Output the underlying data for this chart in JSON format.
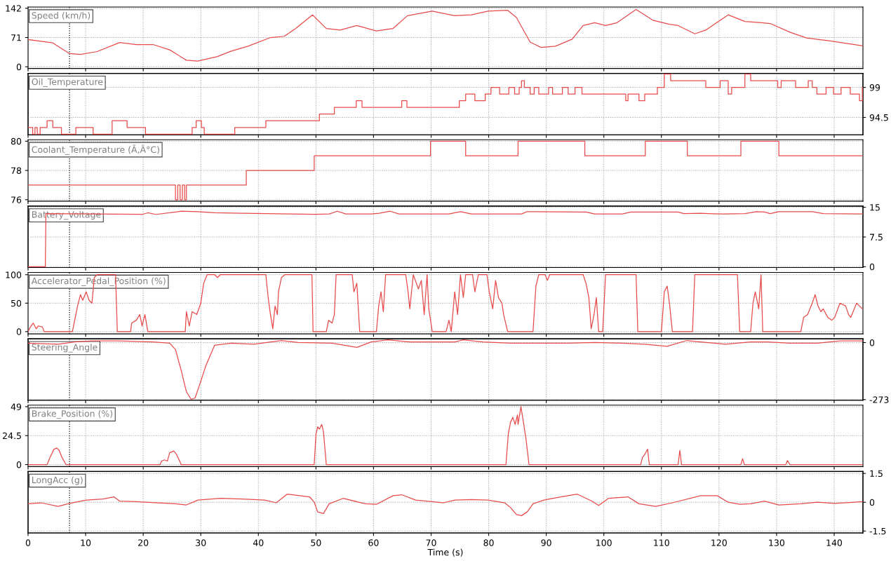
{
  "chart_data": [
    {
      "type": "line",
      "title": "Speed (km/h)",
      "xlim": [
        0,
        145
      ],
      "xticks": [
        0,
        10,
        20,
        30,
        40,
        50,
        60,
        70,
        80,
        90,
        100,
        110,
        120,
        130,
        140
      ],
      "ylim": [
        -4,
        145
      ],
      "yticks": [
        0,
        71,
        142
      ],
      "grid": true,
      "tick_labels": "y",
      "ref_lines": [
        {
          "axis": "x",
          "value": 7.2,
          "color": "#000000",
          "line_style": "dotted"
        }
      ],
      "series": [
        {
          "color": "#e84a4a",
          "x": [
            0,
            4.3,
            7.2,
            9.1,
            12,
            15.9,
            18.8,
            21.7,
            24.6,
            27.5,
            29.5,
            32.9,
            35.3,
            38.2,
            42.1,
            44.5,
            46.5,
            49.4,
            51.8,
            54.2,
            57.1,
            60.5,
            63.4,
            65.9,
            70.2,
            74.1,
            77,
            79.9,
            83.3,
            84.8,
            87.2,
            89.1,
            91.6,
            94.5,
            96.4,
            98.4,
            100.3,
            102.3,
            105.6,
            108.5,
            111.4,
            112.9,
            115.8,
            117.7,
            121.6,
            124.5,
            127.4,
            128.9,
            132.3,
            135.2,
            139.1,
            144.9
          ],
          "values": [
            66,
            58,
            32,
            30,
            37,
            59,
            54,
            54,
            41,
            16,
            14,
            25,
            38,
            50,
            71,
            74,
            93,
            126,
            93,
            89,
            100,
            87,
            93,
            124,
            135,
            124,
            126,
            135,
            137,
            120,
            60,
            47,
            50,
            67,
            100,
            107,
            100,
            107,
            139,
            113,
            103,
            100,
            80,
            89,
            126,
            110,
            107,
            105,
            84,
            70,
            63,
            51
          ]
        }
      ]
    },
    {
      "type": "step",
      "title": "Oil_Temperature",
      "xlim": [
        0,
        145
      ],
      "xticks": [
        0,
        10,
        20,
        30,
        40,
        50,
        60,
        70,
        80,
        90,
        100,
        110,
        120,
        130,
        140
      ],
      "y2lim": [
        91.9,
        101.1
      ],
      "y2ticks": [
        94.5,
        99
      ],
      "grid": true,
      "tick_labels": "y",
      "ref_lines": [
        {
          "axis": "x",
          "value": 7.2,
          "color": "#000000",
          "line_style": "dotted"
        }
      ],
      "series": [
        {
          "color": "#e84a4a",
          "axis": "y2",
          "x": [
            0,
            0.8,
            1.2,
            1.6,
            2.1,
            3.3,
            4.3,
            5.8,
            8.3,
            11.3,
            14.6,
            17.2,
            20.4,
            28.5,
            29.2,
            30.1,
            30.6,
            35.9,
            41.3,
            50.6,
            53.2,
            57,
            58,
            64.9,
            65.8,
            74.9,
            76,
            77.6,
            79.4,
            80.4,
            81.9,
            83.5,
            84.5,
            85.3,
            85.7,
            86.2,
            87.2,
            87.9,
            88.7,
            90.4,
            91.1,
            92.8,
            93.8,
            95,
            96.2,
            103.8,
            104.2,
            106.1,
            107.1,
            109.3,
            110.5,
            111.6,
            117.7,
            120.2,
            121.6,
            122.2,
            124.5,
            125.5,
            130.2,
            130.8,
            133.3,
            135.5,
            136.2,
            137,
            138.6,
            139.9,
            141.2,
            142.8,
            144.4,
            144.9
          ],
          "values": [
            93,
            92,
            93,
            92,
            93,
            94,
            93,
            92,
            93,
            92,
            94,
            93,
            92,
            93,
            94,
            93,
            92,
            93,
            94,
            95,
            96,
            97,
            96,
            97,
            96,
            97,
            98,
            97,
            98,
            99,
            98,
            99,
            98,
            99,
            100,
            99,
            98,
            99,
            98,
            99,
            98,
            99,
            98,
            99,
            98,
            97,
            98,
            97,
            98,
            99,
            101,
            100,
            99,
            100,
            98,
            99,
            101,
            100,
            99,
            100,
            99,
            100,
            99,
            98,
            99,
            98,
            99,
            98,
            97,
            99
          ]
        }
      ]
    },
    {
      "type": "step",
      "title": "Coolant_Temperature (Ã,Â°C)",
      "xlim": [
        0,
        145
      ],
      "xticks": [
        0,
        10,
        20,
        30,
        40,
        50,
        60,
        70,
        80,
        90,
        100,
        110,
        120,
        130,
        140
      ],
      "ylim": [
        75.9,
        80.1
      ],
      "yticks": [
        76,
        78,
        80
      ],
      "grid": true,
      "tick_labels": "y",
      "ref_lines": [
        {
          "axis": "x",
          "value": 7.2,
          "color": "#000000",
          "line_style": "dotted"
        }
      ],
      "series": [
        {
          "color": "#e84a4a",
          "x": [
            0,
            25.6,
            26,
            26.4,
            26.8,
            27.2,
            27.5,
            37.9,
            49.7,
            69.9,
            76,
            85.1,
            96.7,
            107.2,
            114.5,
            123.8,
            130.4,
            144.9
          ],
          "values": [
            77,
            76,
            77,
            76,
            77,
            76,
            77,
            78,
            79,
            80,
            79,
            80,
            79,
            80,
            79,
            80,
            79,
            79
          ]
        }
      ]
    },
    {
      "type": "line",
      "title": "Battery_Voltage",
      "xlim": [
        0,
        145
      ],
      "xticks": [
        0,
        10,
        20,
        30,
        40,
        50,
        60,
        70,
        80,
        90,
        100,
        110,
        120,
        130,
        140
      ],
      "y2lim": [
        -0.2,
        15.3
      ],
      "y2ticks": [
        0,
        7.5,
        15
      ],
      "grid": true,
      "tick_labels": "y",
      "ref_lines": [
        {
          "axis": "x",
          "value": 7.2,
          "color": "#000000",
          "line_style": "dotted"
        }
      ],
      "series": [
        {
          "color": "#e84a4a",
          "axis": "y2",
          "x": [
            0,
            3,
            3.1,
            19.8,
            20.8,
            22.2,
            24.6,
            26.6,
            29.5,
            32.4,
            37.2,
            49.9,
            52.3,
            53.7,
            55.2,
            59.6,
            61,
            62.9,
            64.4,
            73.1,
            75.1,
            77,
            85.7,
            86.7,
            96.9,
            98.4,
            103.2,
            104.7,
            112.9,
            113.9,
            116.8,
            118.2,
            120.7,
            124.5,
            126.5,
            127.9,
            128.9,
            130.4,
            136.2,
            138.1,
            144.9
          ],
          "values": [
            0,
            0,
            13.4,
            13.2,
            13.6,
            13.2,
            13.6,
            14,
            13.9,
            13.6,
            13.5,
            13.2,
            13.3,
            14,
            13.3,
            13.3,
            13.5,
            14,
            13.3,
            13.3,
            13.9,
            13.3,
            13.3,
            13.9,
            13.8,
            13.3,
            13.3,
            13.8,
            13.8,
            13.4,
            13.5,
            13.4,
            13.3,
            13.4,
            13.9,
            13.8,
            13.4,
            13.9,
            13.9,
            13.4,
            13.3
          ]
        }
      ]
    },
    {
      "type": "line",
      "title": "Accelerator_Pedal_Position (%)",
      "xlim": [
        0,
        145
      ],
      "xticks": [
        0,
        10,
        20,
        30,
        40,
        50,
        60,
        70,
        80,
        90,
        100,
        110,
        120,
        130,
        140
      ],
      "ylim": [
        -4,
        104
      ],
      "yticks": [
        0,
        50,
        100
      ],
      "grid": true,
      "tick_labels": "y",
      "ref_lines": [
        {
          "axis": "x",
          "value": 7.2,
          "color": "#000000",
          "line_style": "dotted"
        }
      ],
      "series": [
        {
          "color": "#e84a4a",
          "x": [
            0,
            0.4,
            0.9,
            1.4,
            1.8,
            2.5,
            2.8,
            7.7,
            8,
            8.6,
            9.1,
            9.5,
            10.1,
            10.6,
            11.1,
            11.5,
            12,
            15.2,
            15.5,
            17.8,
            18,
            18.8,
            19.4,
            19.8,
            20.3,
            20.8,
            27.3,
            27.5,
            28,
            28.5,
            29.3,
            30,
            30.5,
            31.1,
            32.4,
            32.9,
            33.4,
            41.3,
            41.7,
            42.1,
            42.5,
            42.9,
            43.3,
            43.5,
            44,
            44.6,
            49.3,
            49.5,
            51.8,
            52.2,
            52.8,
            53.2,
            53.5,
            56.3,
            56.6,
            57.1,
            57.6,
            60.5,
            60.9,
            61.3,
            61.7,
            62.1,
            65.6,
            66,
            66.3,
            66.9,
            67.8,
            68.3,
            68.8,
            69.3,
            69.6,
            70.2,
            72.6,
            73.1,
            73.5,
            74.1,
            74.6,
            75.1,
            75.6,
            76,
            77.2,
            77.6,
            78.2,
            79.7,
            80.1,
            80.7,
            81.2,
            81.7,
            82.3,
            82.6,
            83.3,
            87.7,
            88.2,
            88.7,
            89.8,
            90.2,
            90.6,
            96.4,
            96.9,
            97.4,
            97.8,
            98.3,
            98.7,
            99.1,
            99.8,
            100.3,
            105.6,
            105.9,
            110,
            110.5,
            111,
            111.4,
            111.9,
            115.4,
            115.8,
            123.2,
            123.6,
            125.5,
            125.9,
            126.3,
            126.9,
            127.3,
            127.6,
            134.2,
            134.7,
            135.4,
            136.2,
            136.7,
            137.2,
            137.7,
            138.1,
            138.9,
            139.6,
            140.1,
            141,
            142,
            142.5,
            142.9,
            143.9,
            144.4,
            144.9
          ],
          "values": [
            0,
            8,
            15,
            5,
            10,
            8,
            0,
            0,
            15,
            45,
            65,
            55,
            70,
            55,
            50,
            95,
            100,
            100,
            0,
            0,
            15,
            20,
            30,
            10,
            30,
            0,
            0,
            35,
            10,
            35,
            30,
            50,
            85,
            100,
            100,
            95,
            100,
            100,
            60,
            30,
            5,
            45,
            30,
            70,
            95,
            100,
            100,
            0,
            0,
            20,
            15,
            30,
            100,
            100,
            70,
            85,
            0,
            0,
            45,
            70,
            35,
            100,
            100,
            70,
            40,
            100,
            75,
            90,
            30,
            100,
            40,
            0,
            0,
            20,
            0,
            70,
            30,
            100,
            60,
            100,
            100,
            70,
            100,
            100,
            70,
            40,
            90,
            60,
            50,
            30,
            0,
            0,
            80,
            100,
            100,
            90,
            100,
            100,
            85,
            60,
            5,
            30,
            60,
            0,
            0,
            100,
            100,
            0,
            0,
            70,
            80,
            50,
            0,
            0,
            100,
            100,
            0,
            0,
            50,
            70,
            40,
            100,
            0,
            0,
            25,
            30,
            50,
            65,
            45,
            35,
            40,
            25,
            20,
            25,
            50,
            45,
            30,
            25,
            50,
            45,
            40
          ]
        }
      ]
    },
    {
      "type": "line",
      "title": "Steering_Angle",
      "xlim": [
        0,
        145
      ],
      "xticks": [
        0,
        10,
        20,
        30,
        40,
        50,
        60,
        70,
        80,
        90,
        100,
        110,
        120,
        130,
        140
      ],
      "y2lim": [
        -276,
        18
      ],
      "y2ticks": [
        -273,
        0
      ],
      "grid": true,
      "tick_labels": "y",
      "ref_lines": [
        {
          "axis": "x",
          "value": 7.2,
          "color": "#000000",
          "line_style": "dotted"
        }
      ],
      "series": [
        {
          "color": "#e84a4a",
          "axis": "y2",
          "x": [
            0,
            5.2,
            8.1,
            11.1,
            15.9,
            21.7,
            24.6,
            25.6,
            26.6,
            27.5,
            28.3,
            29,
            30,
            30.9,
            32.4,
            35.3,
            39.2,
            44,
            46.9,
            52.8,
            57.1,
            59.6,
            62.5,
            66.3,
            74.1,
            75.6,
            79,
            83.8,
            88.7,
            93.5,
            98.4,
            103.2,
            107.1,
            111,
            114.4,
            116.8,
            121.1,
            125.5,
            128.4,
            132.3,
            137.1,
            141,
            144.9
          ],
          "values": [
            -3,
            -8,
            3,
            8,
            8,
            3,
            -3,
            -33,
            -134,
            -235,
            -271,
            -266,
            -185,
            -109,
            -13,
            -3,
            -8,
            10,
            0,
            -3,
            -23,
            3,
            13,
            3,
            3,
            13,
            3,
            -3,
            -3,
            -3,
            0,
            -3,
            -8,
            -18,
            10,
            3,
            -8,
            3,
            3,
            -3,
            -3,
            8,
            8
          ]
        }
      ]
    },
    {
      "type": "line",
      "title": "Brake_Position (%)",
      "xlim": [
        0,
        145
      ],
      "xticks": [
        0,
        10,
        20,
        30,
        40,
        50,
        60,
        70,
        80,
        90,
        100,
        110,
        120,
        130,
        140
      ],
      "ylim": [
        -1.7,
        50.3
      ],
      "yticks": [
        0,
        24.5,
        49
      ],
      "grid": true,
      "tick_labels": "y",
      "ref_lines": [
        {
          "axis": "x",
          "value": 7.2,
          "color": "#000000",
          "line_style": "dotted"
        }
      ],
      "series": [
        {
          "color": "#e84a4a",
          "x": [
            0,
            3.3,
            3.8,
            4.5,
            5,
            5.4,
            5.9,
            6.6,
            22.9,
            23.2,
            23.7,
            24.2,
            24.6,
            25.3,
            25.8,
            26.6,
            49.7,
            50,
            50.3,
            50.6,
            51,
            51.3,
            51.8,
            83,
            83.4,
            83.8,
            84.2,
            84.6,
            85,
            85.1,
            85.4,
            85.6,
            85.9,
            86.5,
            87,
            106.4,
            106.7,
            107.1,
            107.6,
            107.9,
            112.9,
            113.2,
            113.5,
            123.8,
            124.1,
            124.4,
            131.6,
            131.9,
            132.3,
            144.9
          ],
          "values": [
            0,
            0,
            6,
            13,
            14,
            12,
            6,
            0,
            0,
            3,
            4,
            3,
            10,
            11.5,
            8.5,
            0,
            0,
            25.6,
            32,
            30,
            34,
            28,
            0,
            0,
            25.6,
            36,
            40,
            34,
            42,
            34,
            43,
            49,
            40,
            21,
            0,
            0,
            6,
            8.5,
            13,
            0,
            0,
            12,
            0,
            0,
            5,
            0,
            0,
            3.4,
            0,
            0
          ]
        }
      ]
    },
    {
      "type": "line",
      "title": "LongAcc (g)",
      "xlabel": "Time (s)",
      "xlim": [
        0,
        145
      ],
      "xticks": [
        0,
        10,
        20,
        30,
        40,
        50,
        60,
        70,
        80,
        90,
        100,
        110,
        120,
        130,
        140
      ],
      "y2lim": [
        -1.6,
        1.6
      ],
      "y2ticks": [
        -1.5,
        0,
        1.5
      ],
      "grid": true,
      "ref_lines": [
        {
          "axis": "x",
          "value": 7.2,
          "color": "#000000",
          "line_style": "dotted"
        }
      ],
      "series": [
        {
          "color": "#e84a4a",
          "axis": "y2",
          "x": [
            0,
            2.3,
            5.2,
            7.2,
            10.1,
            13,
            14.9,
            15.9,
            18.8,
            22.7,
            25.6,
            27.5,
            29.5,
            33.4,
            37.2,
            41.1,
            43.1,
            45,
            48.9,
            49.7,
            50.3,
            51.3,
            52.3,
            54.7,
            58.6,
            60.5,
            63.4,
            64.9,
            67.3,
            70.2,
            72.2,
            74.1,
            77,
            79.9,
            82.8,
            83.8,
            84.8,
            85.7,
            86.7,
            87.7,
            89.6,
            92.5,
            95.4,
            97.9,
            99.1,
            100.8,
            104.2,
            106.1,
            109,
            111.9,
            116.8,
            119.7,
            121.6,
            123.6,
            125.5,
            127.9,
            130.4,
            134.2,
            137.1,
            140.1,
            144.9
          ],
          "values": [
            -0.08,
            -0.03,
            -0.22,
            -0.06,
            0.11,
            0.17,
            0.28,
            0.06,
            0.03,
            -0.03,
            -0.08,
            -0.14,
            0.11,
            0.2,
            0.17,
            0.11,
            -0.03,
            0.42,
            0.28,
            0,
            -0.5,
            -0.59,
            -0.08,
            0.2,
            -0.08,
            -0.11,
            0.34,
            0.39,
            0.11,
            0.03,
            -0.03,
            0.11,
            0.14,
            0.11,
            -0.03,
            -0.28,
            -0.64,
            -0.7,
            -0.5,
            -0.08,
            0.11,
            0.28,
            0.42,
            0.06,
            -0.17,
            0.2,
            0.28,
            -0.08,
            -0.22,
            -0.03,
            0.34,
            0.34,
            0,
            -0.11,
            -0.08,
            0.06,
            -0.14,
            -0.08,
            0,
            -0.06,
            0.03
          ]
        }
      ]
    }
  ]
}
